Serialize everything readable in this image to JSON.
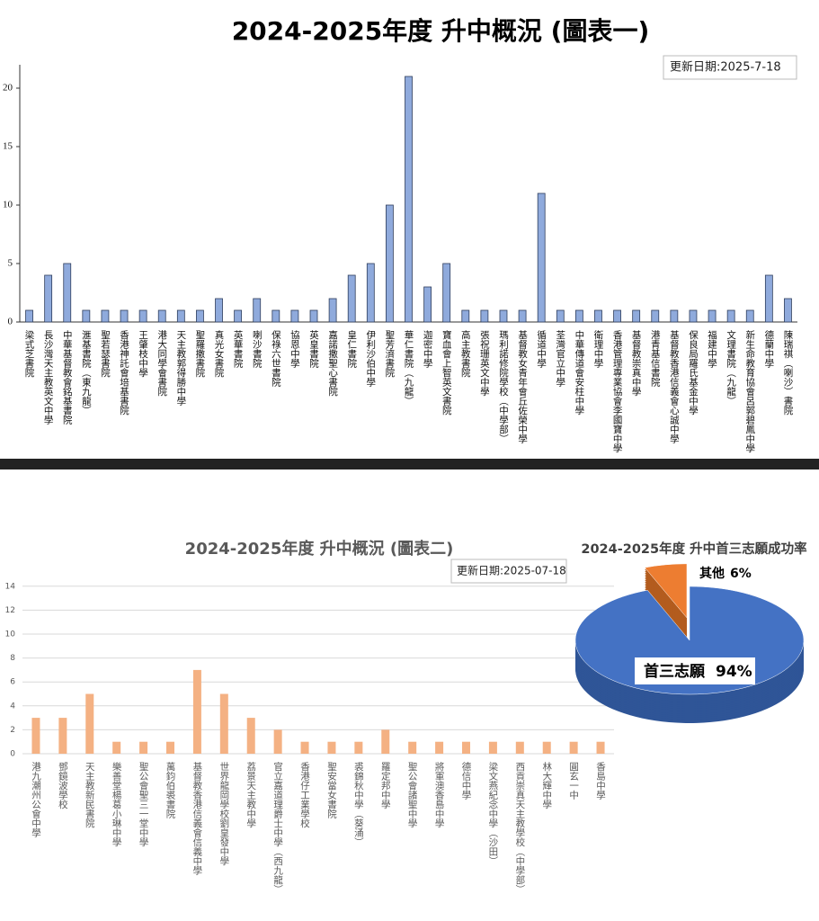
{
  "chart_data": [
    {
      "type": "bar",
      "title": "2024-2025年度 升中概況 (圖表一)",
      "annotation": "更新日期:2025-7-18",
      "categories": [
        "梁式芝書院",
        "長沙灣天主教英文中學",
        "中華基督教會銘基書院",
        "滙基書院（東九龍）",
        "聖若瑟書院",
        "香港神託會培基書院",
        "王肇枝中學",
        "港大同學會書院",
        "天主教郭得勝中學",
        "聖羅撒書院",
        "真光女書院",
        "英華書院",
        "喇沙書院",
        "保祿六世書院",
        "協恩中學",
        "英皇書院",
        "嘉諾撒聖心書院",
        "皇仁書院",
        "伊利沙伯中學",
        "聖芳濟書院",
        "華仁書院（九龍）",
        "迦密中學",
        "寶血會上智英文書院",
        "高主教書院",
        "張祝珊英文中學",
        "瑪利諾修院學校（中學部）",
        "基督教女青年會丘佐榮中學",
        "循道中學",
        "荃灣官立中學",
        "中華傳道會安柱中學",
        "衛理中學",
        "香港管理專業協會李國寶中學",
        "基督教崇真中學",
        "港青基信書院",
        "基督教香港信義會心誠中學",
        "保良局羅氏基金中學",
        "福建中學",
        "文理書院（九龍）",
        "新生命教育協會呂郭碧鳳中學",
        "德蘭中學",
        "陳瑞祺（喇沙）書院"
      ],
      "values": [
        1,
        4,
        5,
        1,
        1,
        1,
        1,
        1,
        1,
        1,
        2,
        1,
        2,
        1,
        1,
        1,
        2,
        4,
        5,
        10,
        21,
        3,
        5,
        1,
        1,
        1,
        1,
        11,
        1,
        1,
        1,
        1,
        1,
        1,
        1,
        1,
        1,
        1,
        1,
        4,
        2
      ],
      "color": "#8faadc",
      "ylim": [
        0,
        22
      ],
      "yticks": [
        0,
        5,
        10,
        15,
        20
      ],
      "grid": false
    },
    {
      "type": "bar",
      "title": "2024-2025年度 升中概況 (圖表二)",
      "annotation": "更新日期:2025-07-18",
      "categories": [
        "港九潮州公會中學",
        "鄧鏡波學校",
        "天主教新民書院",
        "樂善堂楊葛小琳中學",
        "聖公會聖三一堂中學",
        "萬鈞伯裘書院",
        "基督教香港信義會信義中學",
        "世界龍岡學校劉皇發中學",
        "荔景天主教中學",
        "官立嘉道理爵士中學（西九龍）",
        "香港仔工業學校",
        "聖安當女書院",
        "裘錦秋中學（葵涌）",
        "羅定邦中學",
        "聖公會諸聖中學",
        "將軍澳香島中學",
        "德信中學",
        "梁文燕紀念中學（沙田）",
        "西貢崇真天主教學校（中學部）",
        "林大輝中學",
        "圓玄一中",
        "香島中學"
      ],
      "values": [
        3,
        3,
        5,
        1,
        1,
        1,
        7,
        5,
        3,
        2,
        1,
        1,
        1,
        2,
        1,
        1,
        1,
        1,
        1,
        1,
        1,
        1
      ],
      "color": "#f4b183",
      "ylim": [
        0,
        14
      ],
      "yticks": [
        0,
        2,
        4,
        6,
        8,
        10,
        12,
        14
      ],
      "grid": true
    },
    {
      "type": "pie",
      "title": "2024-2025年度 升中首三志願成功率",
      "categories": [
        "首三志願",
        "其他"
      ],
      "values": [
        94,
        6
      ],
      "value_labels": [
        "94%",
        "6%"
      ],
      "colors": [
        "#4472c4",
        "#ed7d31"
      ]
    }
  ]
}
